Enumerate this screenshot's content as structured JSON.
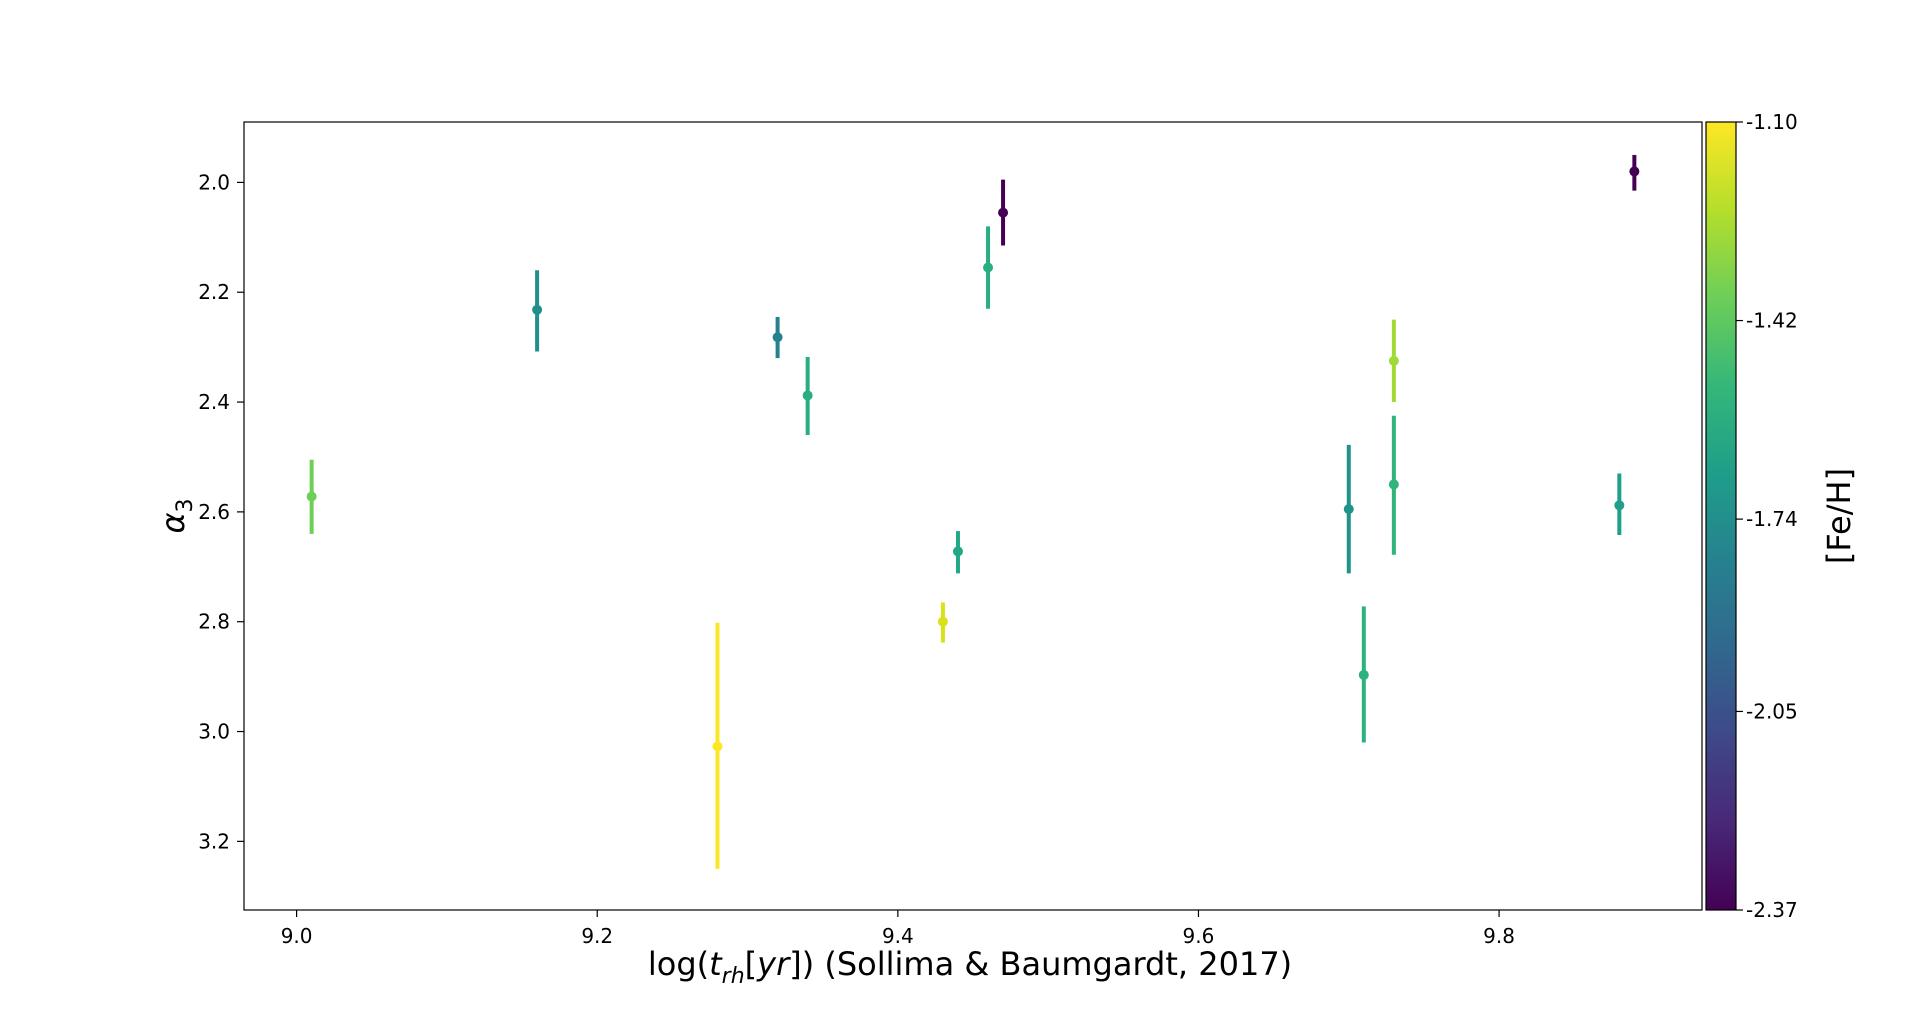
{
  "chart_data": {
    "type": "scatter",
    "title": "",
    "xlabel": "log(t_rh[yr]) (Sollima & Baumgardt, 2017)",
    "xlabel_parts": {
      "pre": "log(",
      "var": "t",
      "sub": "rh",
      "bracket_open": "[",
      "unit": "yr",
      "bracket_close": "]",
      "post": ") (Sollima & Baumgardt, 2017)"
    },
    "ylabel": "α3",
    "ylabel_parts": {
      "var": "α",
      "sub": "3"
    },
    "xlim": [
      8.965,
      9.935
    ],
    "ylim": [
      1.89,
      3.325
    ],
    "y_inverted": true,
    "grid": false,
    "xticks": [
      9.0,
      9.2,
      9.4,
      9.6,
      9.8
    ],
    "xtick_labels": [
      "9.0",
      "9.2",
      "9.4",
      "9.6",
      "9.8"
    ],
    "yticks": [
      2.0,
      2.2,
      2.4,
      2.6,
      2.8,
      3.0,
      3.2
    ],
    "ytick_labels": [
      "2.0",
      "2.2",
      "2.4",
      "2.6",
      "2.8",
      "3.0",
      "3.2"
    ],
    "colorbar": {
      "label": "[Fe/H]",
      "colormap": "viridis",
      "range": [
        -2.37,
        -1.1
      ],
      "ticks": [
        -1.1,
        -1.42,
        -1.74,
        -2.05,
        -2.37
      ],
      "tick_labels": [
        "-1.10",
        "-1.42",
        "-1.74",
        "-2.05",
        "-2.37"
      ],
      "stops": [
        "#440154",
        "#482878",
        "#3e4989",
        "#31688e",
        "#26828e",
        "#1f9e89",
        "#35b779",
        "#6ece58",
        "#b5de2b",
        "#fde725"
      ]
    },
    "points": [
      {
        "x": 9.01,
        "y": 2.572,
        "yerr_low": 2.505,
        "yerr_high": 2.64,
        "feh": -1.37,
        "color": "#6ece58"
      },
      {
        "x": 9.16,
        "y": 2.232,
        "yerr_low": 2.16,
        "yerr_high": 2.308,
        "feh": -1.84,
        "color": "#21908d"
      },
      {
        "x": 9.28,
        "y": 3.027,
        "yerr_low": 2.802,
        "yerr_high": 3.25,
        "feh": -1.12,
        "color": "#fde725"
      },
      {
        "x": 9.32,
        "y": 2.282,
        "yerr_low": 2.245,
        "yerr_high": 2.32,
        "feh": -1.9,
        "color": "#26818e"
      },
      {
        "x": 9.34,
        "y": 2.388,
        "yerr_low": 2.318,
        "yerr_high": 2.46,
        "feh": -1.55,
        "color": "#29af7f"
      },
      {
        "x": 9.43,
        "y": 2.8,
        "yerr_low": 2.765,
        "yerr_high": 2.838,
        "feh": -1.18,
        "color": "#d8e219"
      },
      {
        "x": 9.44,
        "y": 2.672,
        "yerr_low": 2.635,
        "yerr_high": 2.712,
        "feh": -1.6,
        "color": "#22a884"
      },
      {
        "x": 9.46,
        "y": 2.155,
        "yerr_low": 2.08,
        "yerr_high": 2.23,
        "feh": -1.55,
        "color": "#29af7f"
      },
      {
        "x": 9.47,
        "y": 2.055,
        "yerr_low": 1.995,
        "yerr_high": 2.115,
        "feh": -2.32,
        "color": "#440154"
      },
      {
        "x": 9.7,
        "y": 2.595,
        "yerr_low": 2.478,
        "yerr_high": 2.712,
        "feh": -1.8,
        "color": "#20928c"
      },
      {
        "x": 9.71,
        "y": 2.897,
        "yerr_low": 2.772,
        "yerr_high": 3.02,
        "feh": -1.55,
        "color": "#2db27d"
      },
      {
        "x": 9.73,
        "y": 2.325,
        "yerr_low": 2.25,
        "yerr_high": 2.4,
        "feh": -1.3,
        "color": "#a0da39"
      },
      {
        "x": 9.73,
        "y": 2.55,
        "yerr_low": 2.425,
        "yerr_high": 2.678,
        "feh": -1.53,
        "color": "#2fb47c"
      },
      {
        "x": 9.88,
        "y": 2.588,
        "yerr_low": 2.53,
        "yerr_high": 2.642,
        "feh": -1.7,
        "color": "#1f9e89"
      },
      {
        "x": 9.89,
        "y": 1.98,
        "yerr_low": 1.95,
        "yerr_high": 2.015,
        "feh": -2.32,
        "color": "#440154"
      }
    ]
  }
}
